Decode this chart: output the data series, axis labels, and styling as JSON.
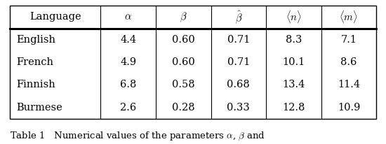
{
  "col_headers": [
    "Language",
    "$\\alpha$",
    "$\\beta$",
    "$\\hat{\\beta}$",
    "$\\langle n\\rangle$",
    "$\\langle m\\rangle$"
  ],
  "rows": [
    [
      "English",
      "4.4",
      "0.60",
      "0.71",
      "8.3",
      "7.1"
    ],
    [
      "French",
      "4.9",
      "0.60",
      "0.71",
      "10.1",
      "8.6"
    ],
    [
      "Finnish",
      "6.8",
      "0.58",
      "0.68",
      "13.4",
      "11.4"
    ],
    [
      "Burmese",
      "2.6",
      "0.28",
      "0.33",
      "12.8",
      "10.9"
    ]
  ],
  "caption": "Table 1   Numerical values of the parameters $\\alpha$, $\\beta$ and",
  "bg_color": "#ffffff",
  "text_color": "#000000",
  "line_color": "#000000",
  "font_size": 10.5,
  "caption_font_size": 9.5
}
